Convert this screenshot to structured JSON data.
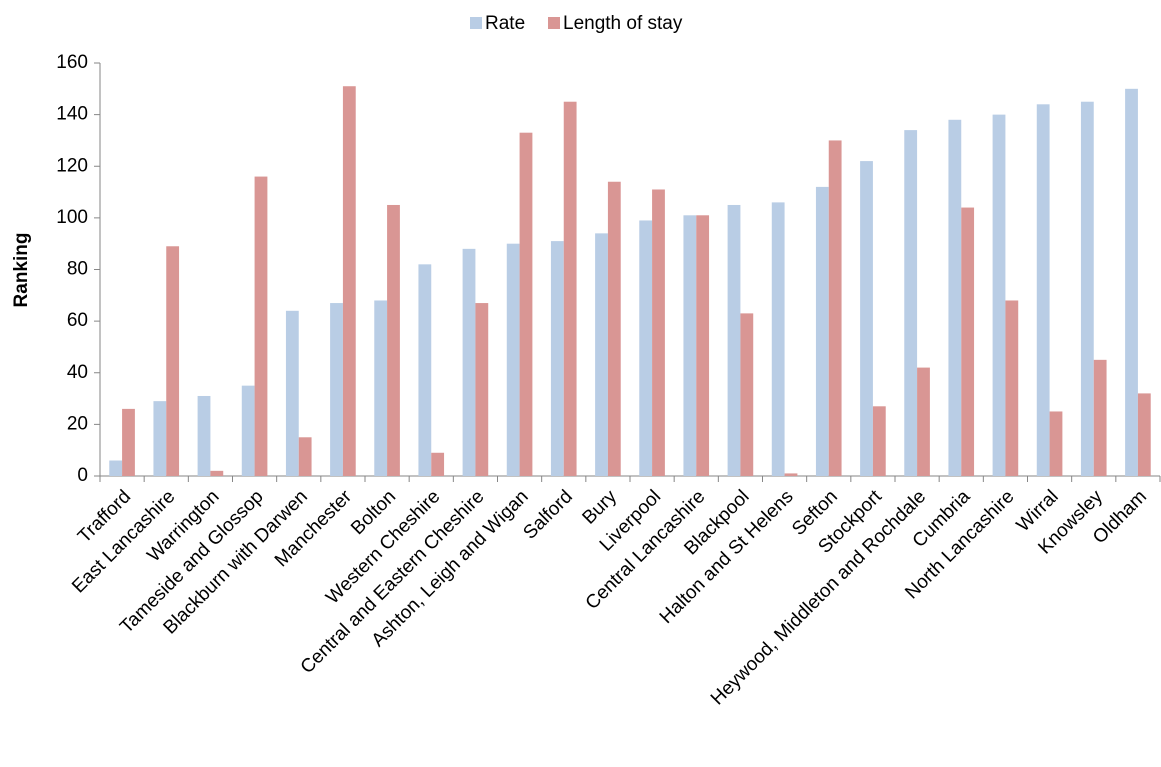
{
  "chart_data": {
    "type": "bar",
    "y_label": "Ranking",
    "categories": [
      "Trafford",
      "East Lancashire",
      "Warrington",
      "Tameside and Glossop",
      "Blackburn with Darwen",
      "Manchester",
      "Bolton",
      "Western Cheshire",
      "Central and Eastern Cheshire",
      "Ashton, Leigh and Wigan",
      "Salford",
      "Bury",
      "Liverpool",
      "Central Lancashire",
      "Blackpool",
      "Halton and St Helens",
      "Sefton",
      "Stockport",
      "Heywood, Middleton and Rochdale",
      "Cumbria",
      "North Lancashire",
      "Wirral",
      "Knowsley",
      "Oldham"
    ],
    "series": [
      {
        "name": "Rate",
        "color": "#b9cde5",
        "values": [
          6,
          29,
          31,
          35,
          64,
          67,
          68,
          82,
          88,
          90,
          91,
          94,
          99,
          101,
          105,
          106,
          112,
          122,
          134,
          138,
          140,
          144,
          145,
          150
        ]
      },
      {
        "name": "Length of stay",
        "color": "#d99694",
        "values": [
          26,
          89,
          2,
          116,
          15,
          151,
          105,
          9,
          67,
          133,
          145,
          114,
          111,
          101,
          63,
          1,
          130,
          27,
          42,
          104,
          68,
          25,
          45,
          32
        ]
      }
    ],
    "ylim": [
      0,
      160
    ],
    "yticks": [
      0,
      20,
      40,
      60,
      80,
      100,
      120,
      140,
      160
    ],
    "grid": false,
    "legend": "top"
  }
}
